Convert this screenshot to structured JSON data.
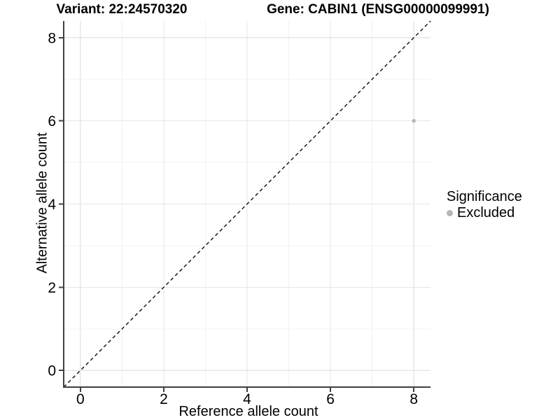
{
  "chart_data": {
    "type": "scatter",
    "title_left": "Variant: 22:24570320",
    "title_right": "Gene: CABIN1 (ENSG00000099991)",
    "xlabel": "Reference allele count",
    "ylabel": "Alternative allele count",
    "xlim": [
      -0.4,
      8.4
    ],
    "ylim": [
      -0.4,
      8.4
    ],
    "x_major_ticks": [
      0,
      2,
      4,
      6,
      8
    ],
    "y_major_ticks": [
      0,
      2,
      4,
      6,
      8
    ],
    "x_minor_gridlines": [
      1,
      3,
      5,
      7
    ],
    "y_minor_gridlines": [
      1,
      3,
      5,
      7
    ],
    "points": [
      {
        "x": 8,
        "y": 6,
        "significance": "Excluded"
      }
    ],
    "identity_line": {
      "shown": true,
      "linetype": "dashed",
      "slope": 1,
      "intercept": 0
    },
    "grid": "on",
    "legend": {
      "position": "right",
      "title": "Significance",
      "items": [
        {
          "label": "Excluded",
          "color": "#b5b5b5"
        }
      ]
    },
    "colors": {
      "point": "#b5b5b5",
      "grid_major": "#e6e6e6",
      "grid_minor": "#f0f0f0",
      "axis_line": "#404040",
      "identity_line": "#0d0d0d"
    }
  }
}
